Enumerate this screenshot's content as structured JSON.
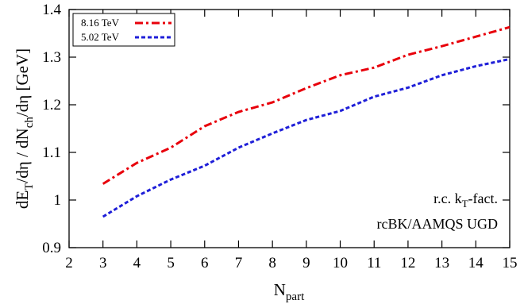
{
  "chart_data": {
    "type": "line",
    "xlabel": "N",
    "xlabel_sub": "part",
    "ylabel": "dE_T/dη / dN_ch/dη [GeV]",
    "xlim": [
      2,
      15
    ],
    "ylim": [
      0.9,
      1.4
    ],
    "xticks": [
      2,
      3,
      4,
      5,
      6,
      7,
      8,
      9,
      10,
      11,
      12,
      13,
      14,
      15
    ],
    "yticks": [
      0.9,
      1.0,
      1.1,
      1.2,
      1.3,
      1.4
    ],
    "ytick_labels": [
      "0.9",
      "1",
      "1.1",
      "1.2",
      "1.3",
      "1.4"
    ],
    "grid": false,
    "legend_position": "top-left",
    "x": [
      3,
      4,
      5,
      6,
      7,
      8,
      9,
      10,
      11,
      12,
      13,
      14,
      15
    ],
    "series": [
      {
        "name": "8.16 TeV",
        "color": "#e8000b",
        "style": "dash-dot",
        "values": [
          1.034,
          1.078,
          1.11,
          1.155,
          1.185,
          1.205,
          1.235,
          1.262,
          1.278,
          1.305,
          1.323,
          1.343,
          1.363
        ]
      },
      {
        "name": "5.02 TeV",
        "color": "#1f1fd8",
        "style": "dashed",
        "values": [
          0.965,
          1.008,
          1.043,
          1.072,
          1.11,
          1.14,
          1.168,
          1.187,
          1.217,
          1.236,
          1.262,
          1.281,
          1.296
        ]
      }
    ],
    "annotations": [
      {
        "text": "r.c. k",
        "sub": "T",
        "tail": "-fact."
      },
      {
        "text": "rcBK/AAMQS UGD"
      }
    ]
  }
}
